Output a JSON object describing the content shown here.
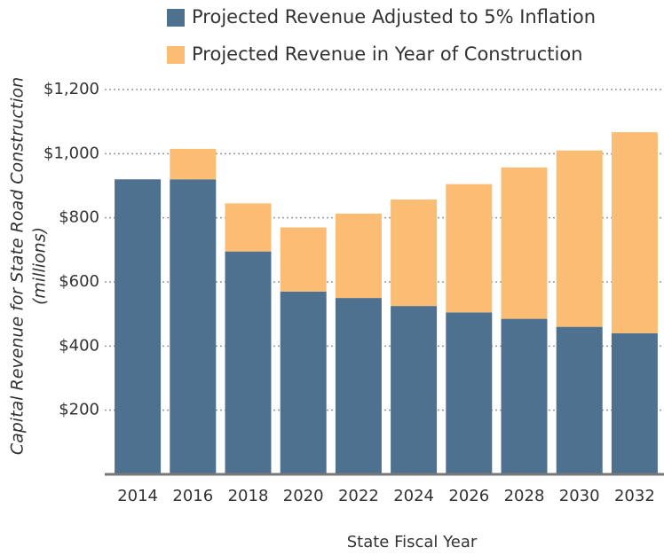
{
  "chart_data": {
    "type": "stacked_bar",
    "x_label": "State Fiscal Year",
    "y_label": [
      "Capital Revenue for State Road Construction",
      "(millions)"
    ],
    "categories": [
      "2014",
      "2016",
      "2018",
      "2020",
      "2022",
      "2024",
      "2026",
      "2028",
      "2030",
      "2032"
    ],
    "series": [
      {
        "name": "Projected Revenue Adjusted to 5% Inflation",
        "color": "#4f7190",
        "values": [
          920,
          920,
          695,
          570,
          550,
          525,
          505,
          485,
          460,
          440
        ]
      },
      {
        "name": "Projected Revenue in Year of Construction",
        "color": "#fbbd74",
        "values": [
          0,
          95,
          150,
          200,
          263,
          332,
          400,
          472,
          550,
          627
        ]
      }
    ],
    "ylim": [
      0,
      1200
    ],
    "yticks": [
      {
        "value": 200,
        "label": "$200"
      },
      {
        "value": 400,
        "label": "$400"
      },
      {
        "value": 600,
        "label": "$600"
      },
      {
        "value": 800,
        "label": "$800"
      },
      {
        "value": 1000,
        "label": "$1,000"
      },
      {
        "value": 1200,
        "label": "$1,200"
      }
    ],
    "grid": true
  }
}
